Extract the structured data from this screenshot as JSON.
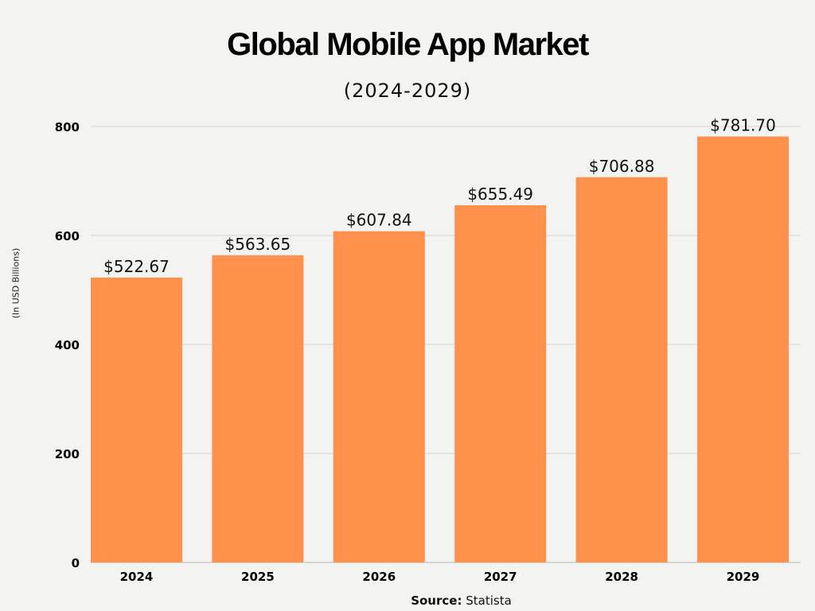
{
  "chart_data": {
    "type": "bar",
    "title": "Global Mobile App Market",
    "subtitle": "(2024-2029)",
    "ylabel": "(In USD Billions)",
    "xlabel": "",
    "categories": [
      "2024",
      "2025",
      "2026",
      "2027",
      "2028",
      "2029"
    ],
    "values": [
      522.67,
      563.65,
      607.84,
      655.49,
      706.88,
      781.7
    ],
    "data_labels": [
      "$522.67",
      "$563.65",
      "$607.84",
      "$655.49",
      "$706.88",
      "$781.70"
    ],
    "ylim": [
      0,
      800
    ],
    "yticks": [
      0,
      200,
      400,
      600,
      800
    ],
    "grid": true,
    "bar_color": "#ff914d",
    "source_label": "Source:",
    "source_value": "Statista"
  }
}
